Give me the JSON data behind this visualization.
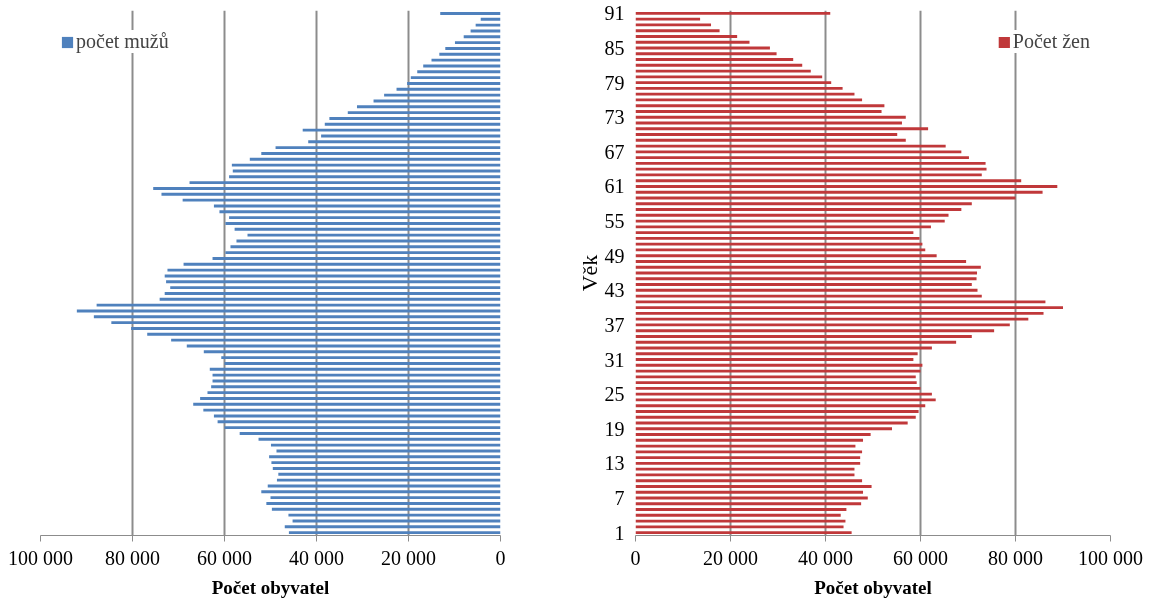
{
  "chart_data": [
    {
      "type": "bar",
      "orientation": "horizontal",
      "xlabel": "Počet obyvatel",
      "categories": [
        null,
        null,
        null,
        null,
        null,
        null,
        null,
        null,
        null,
        null,
        null,
        null,
        null,
        null,
        null,
        null,
        null,
        null,
        null,
        null,
        null,
        null,
        null,
        null,
        null,
        null,
        null,
        null,
        null,
        null,
        null,
        null,
        null,
        null,
        null,
        null,
        null,
        null,
        null,
        null,
        null,
        null,
        null,
        null,
        null,
        null,
        null,
        null,
        null,
        null,
        null,
        null,
        null,
        null,
        null,
        null,
        null,
        null,
        null,
        null,
        null,
        null,
        null,
        null,
        null,
        null,
        null,
        null,
        null,
        null,
        null,
        null,
        null,
        null,
        null,
        null,
        null,
        null,
        null,
        null,
        null,
        null,
        null,
        null,
        null,
        null,
        null,
        null,
        null,
        null
      ],
      "series": [
        {
          "name": "počet mužů",
          "color": "#4f81bd",
          "values": [
            13100,
            4300,
            5400,
            6500,
            8000,
            9900,
            12000,
            13300,
            15000,
            16800,
            18100,
            19500,
            20300,
            22600,
            25300,
            27600,
            31200,
            33200,
            37200,
            38200,
            43000,
            39000,
            41800,
            48900,
            52000,
            54500,
            58400,
            58200,
            59000,
            67600,
            75500,
            73700,
            69100,
            62300,
            61100,
            59000,
            59800,
            57800,
            55000,
            57400,
            58700,
            59800,
            62600,
            68900,
            72400,
            73000,
            72700,
            71800,
            73000,
            74100,
            87800,
            92100,
            88400,
            84600,
            80300,
            76800,
            71600,
            68200,
            64500,
            60700,
            60000,
            63200,
            62600,
            62600,
            62900,
            63700,
            65300,
            66800,
            64600,
            62300,
            61500,
            60000,
            56700,
            52600,
            49900,
            48700,
            50300,
            49800,
            49500,
            48300,
            48600,
            50600,
            52000,
            50000,
            50900,
            49700,
            46100,
            45200,
            46900,
            46000
          ]
        }
      ],
      "xlim": [
        100000,
        0
      ],
      "xticks": [
        {
          "value": 100000,
          "label": "100 000"
        },
        {
          "value": 80000,
          "label": "80 000"
        },
        {
          "value": 60000,
          "label": "60 000"
        },
        {
          "value": 40000,
          "label": "40 000"
        },
        {
          "value": 20000,
          "label": "20 000"
        },
        0
      ],
      "grid": "x",
      "legend": "top left",
      "tick_labels": "x"
    },
    {
      "type": "bar",
      "orientation": "horizontal",
      "xlabel": "Počet obyvatel",
      "ylabel": "Věk",
      "categories": [
        "91",
        null,
        null,
        null,
        null,
        null,
        "85",
        null,
        null,
        null,
        null,
        null,
        "79",
        null,
        null,
        null,
        null,
        null,
        "73",
        null,
        null,
        null,
        null,
        null,
        "67",
        null,
        null,
        null,
        null,
        null,
        "61",
        null,
        null,
        null,
        null,
        null,
        "55",
        null,
        null,
        null,
        null,
        null,
        "49",
        null,
        null,
        null,
        null,
        null,
        "43",
        null,
        null,
        null,
        null,
        null,
        "37",
        null,
        null,
        null,
        null,
        null,
        "31",
        null,
        null,
        null,
        null,
        null,
        "25",
        null,
        null,
        null,
        null,
        null,
        "19",
        null,
        null,
        null,
        null,
        null,
        "13",
        null,
        null,
        null,
        null,
        null,
        "7",
        null,
        null,
        null,
        null,
        null,
        "1"
      ],
      "series": [
        {
          "name": "Počet žen",
          "color": "#c0383a",
          "values": [
            41000,
            13600,
            15900,
            17700,
            21400,
            24000,
            28300,
            29700,
            33200,
            35100,
            36900,
            39300,
            41200,
            43600,
            46100,
            47700,
            52400,
            51800,
            56900,
            56100,
            61600,
            55100,
            56900,
            65300,
            68600,
            70200,
            73700,
            73900,
            72900,
            81200,
            88800,
            85700,
            80000,
            70800,
            68600,
            65900,
            65100,
            62200,
            58500,
            59800,
            60400,
            61000,
            63400,
            69600,
            72700,
            71900,
            71800,
            70800,
            72000,
            72900,
            86300,
            90000,
            85900,
            82700,
            78800,
            75500,
            70800,
            67500,
            62400,
            59400,
            58500,
            60400,
            60000,
            59000,
            59200,
            60000,
            62400,
            63200,
            61000,
            59600,
            59000,
            57300,
            54000,
            49500,
            47900,
            46300,
            47700,
            47300,
            47300,
            46100,
            46100,
            47700,
            49700,
            47900,
            48900,
            47500,
            44400,
            43200,
            44200,
            43800,
            45500
          ]
        }
      ],
      "xlim": [
        0,
        100000
      ],
      "xticks": [
        0,
        {
          "value": 20000,
          "label": "20 000"
        },
        {
          "value": 40000,
          "label": "40 000"
        },
        {
          "value": 60000,
          "label": "60 000"
        },
        {
          "value": 80000,
          "label": "80 000"
        },
        {
          "value": 100000,
          "label": "100 000"
        }
      ],
      "grid": "x",
      "legend": "top right"
    }
  ]
}
